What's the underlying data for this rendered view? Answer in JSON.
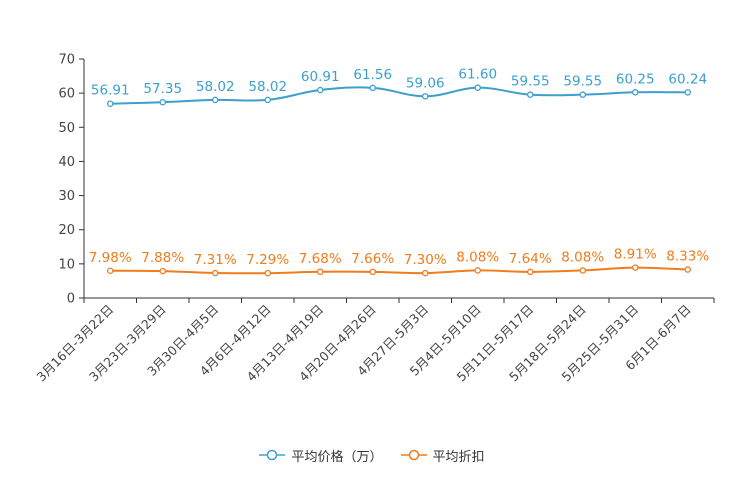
{
  "chart_data": {
    "type": "line",
    "categories": [
      "3月16日-3月22日",
      "3月23日-3月29日",
      "3月30日-4月5日",
      "4月6日-4月12日",
      "4月13日-4月19日",
      "4月20日-4月26日",
      "4月27日-5月3日",
      "5月4日-5月10日",
      "5月11日-5月17日",
      "5月18日-5月24日",
      "5月25日-5月31日",
      "6月1日-6月7日"
    ],
    "series": [
      {
        "name": "平均价格（万）",
        "color": "#3c9fce",
        "values": [
          56.91,
          57.35,
          58.02,
          58.02,
          60.91,
          61.56,
          59.06,
          61.6,
          59.55,
          59.55,
          60.25,
          60.24
        ],
        "labels": [
          "56.91",
          "57.35",
          "58.02",
          "58.02",
          "60.91",
          "61.56",
          "59.06",
          "61.60",
          "59.55",
          "59.55",
          "60.25",
          "60.24"
        ]
      },
      {
        "name": "平均折扣",
        "color": "#f07c1b",
        "values": [
          7.98,
          7.88,
          7.31,
          7.29,
          7.68,
          7.66,
          7.3,
          8.08,
          7.64,
          8.08,
          8.91,
          8.33
        ],
        "labels": [
          "7.98%",
          "7.88%",
          "7.31%",
          "7.29%",
          "7.68%",
          "7.66%",
          "7.30%",
          "8.08%",
          "7.64%",
          "8.08%",
          "8.91%",
          "8.33%"
        ]
      }
    ],
    "yticks": [
      "0",
      "10",
      "20",
      "30",
      "40",
      "50",
      "60",
      "70"
    ],
    "ylim": [
      0,
      70
    ],
    "title": "",
    "xlabel": "",
    "ylabel": "",
    "legend": "bottom-center",
    "grid": false
  }
}
